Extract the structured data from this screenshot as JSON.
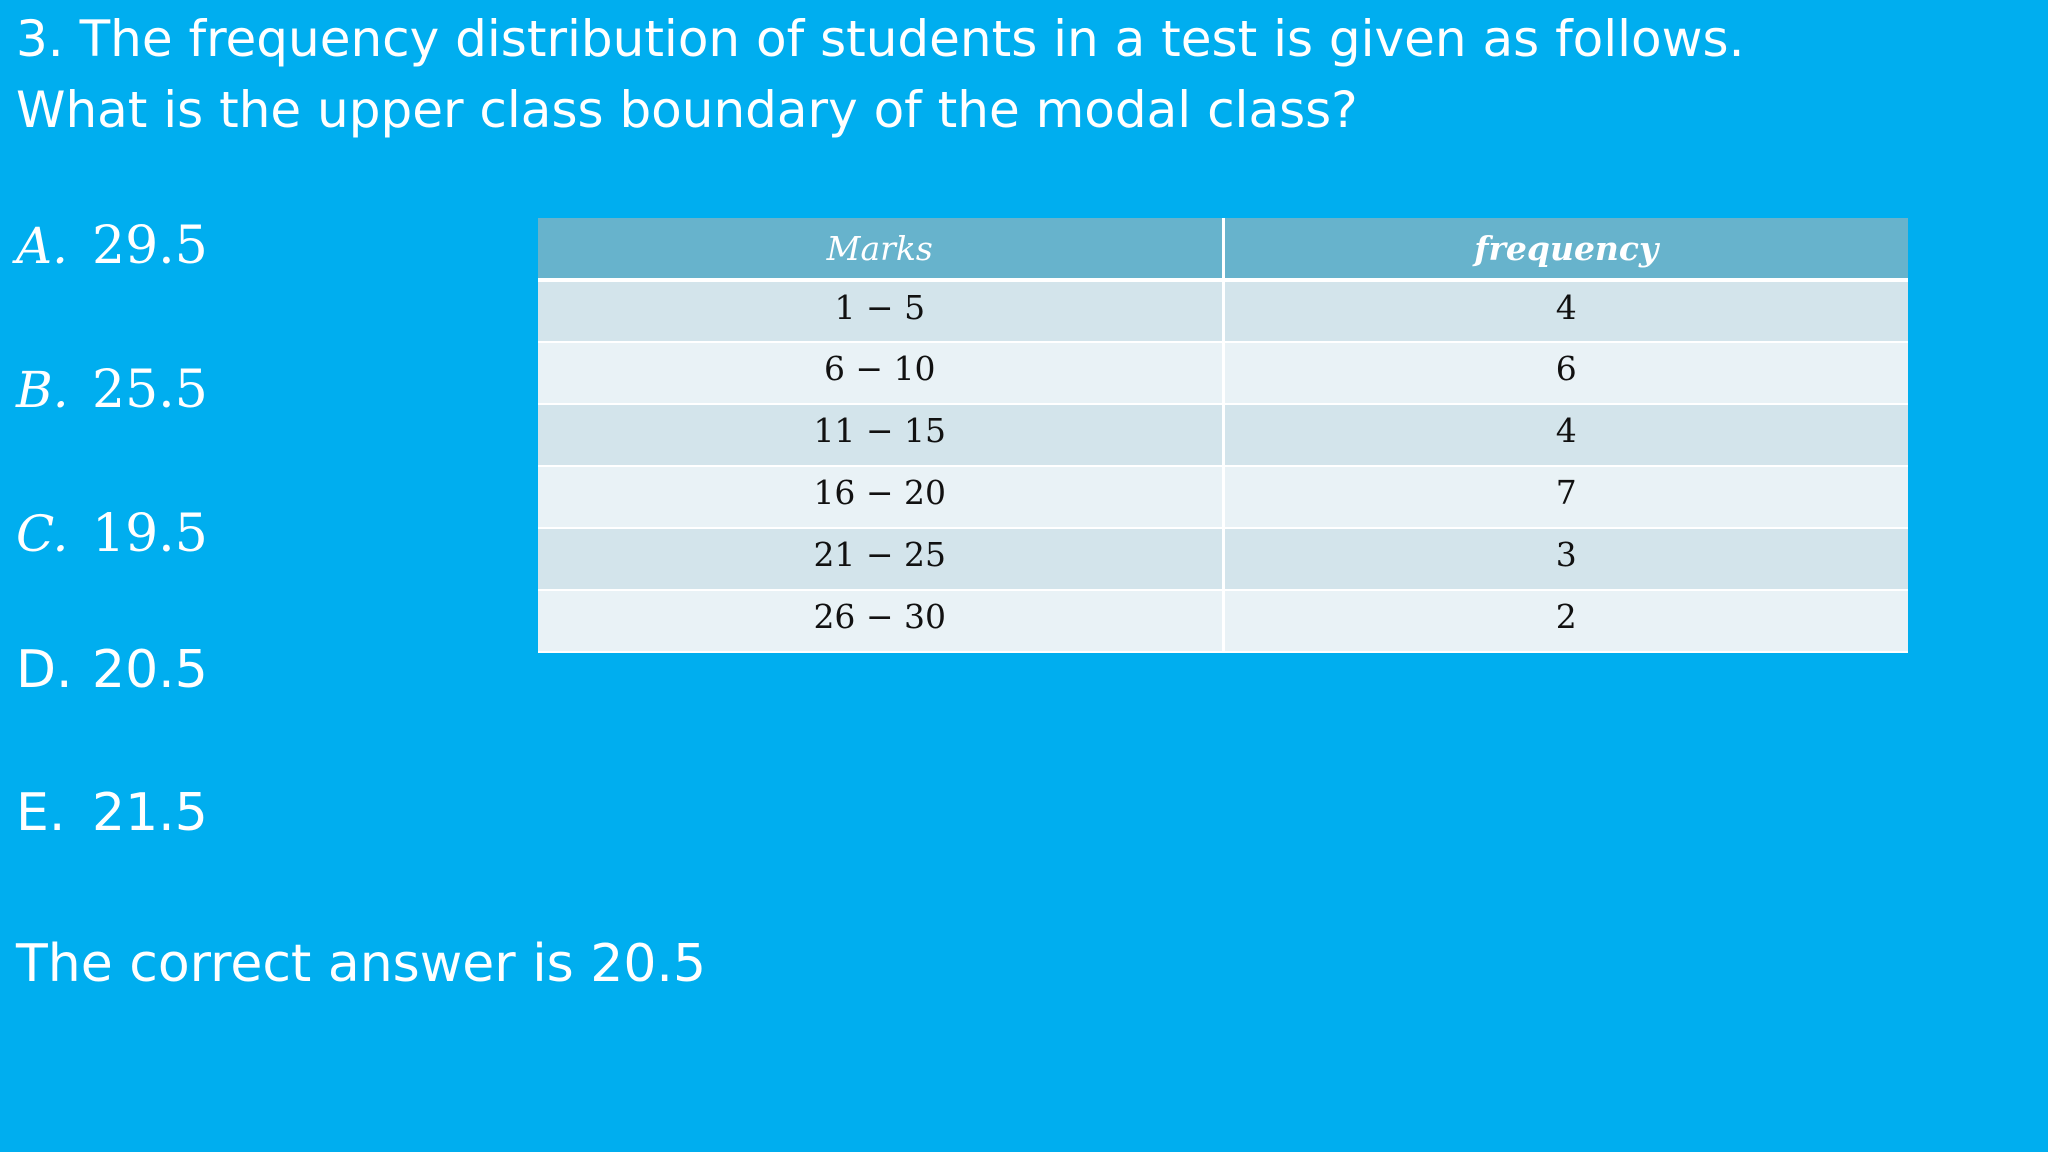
{
  "question": {
    "line1": "3. The frequency distribution of students in a test is given as follows.",
    "line2": "What is the upper class boundary of the modal class?"
  },
  "options": [
    {
      "letter": "A.",
      "value": "29.5"
    },
    {
      "letter": "B.",
      "value": "25.5"
    },
    {
      "letter": "C.",
      "value": "19.5"
    },
    {
      "letter": "D.",
      "value": "20.5"
    },
    {
      "letter": "E.",
      "value": "21.5"
    }
  ],
  "table": {
    "headers": [
      "Marks",
      "frequency"
    ],
    "rows": [
      [
        "1 − 5",
        "4"
      ],
      [
        "6 − 10",
        "6"
      ],
      [
        "11 − 15",
        "4"
      ],
      [
        "16 − 20",
        "7"
      ],
      [
        "21 − 25",
        "3"
      ],
      [
        "26 − 30",
        "2"
      ]
    ]
  },
  "answer": "The correct answer is 20.5",
  "colors": {
    "background": "#00aeef",
    "header": "#67b3cc",
    "row_dark": "#d3e4eb",
    "row_light": "#e9f2f6",
    "text": "#ffffff"
  }
}
